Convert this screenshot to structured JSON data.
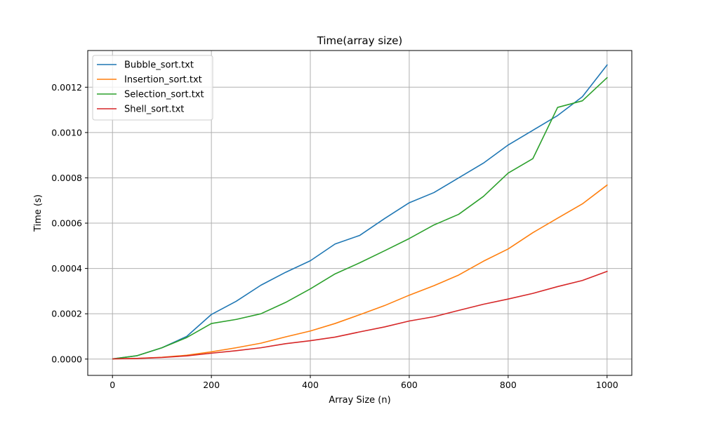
{
  "chart_data": {
    "type": "line",
    "title": "Time(array size)",
    "xlabel": "Array Size (n)",
    "ylabel": "Time (s)",
    "xlim": [
      -50,
      1050
    ],
    "ylim": [
      -7.2e-05,
      0.001362
    ],
    "grid": true,
    "legend_position": "upper-left",
    "x_ticks": [
      0,
      200,
      400,
      600,
      800,
      1000
    ],
    "x_tick_labels": [
      "0",
      "200",
      "400",
      "600",
      "800",
      "1000"
    ],
    "y_ticks": [
      0,
      0.0002,
      0.0004,
      0.0006,
      0.0008,
      0.001,
      0.0012
    ],
    "y_tick_labels": [
      "0.0000",
      "0.0002",
      "0.0004",
      "0.0006",
      "0.0008",
      "0.0010",
      "0.0012"
    ],
    "x": [
      1,
      50,
      100,
      150,
      200,
      250,
      300,
      350,
      400,
      450,
      500,
      550,
      600,
      650,
      700,
      750,
      800,
      850,
      900,
      950,
      1000
    ],
    "series": [
      {
        "name": "Bubble_sort.txt",
        "color": "#1f77b4",
        "values": [
          1e-06,
          1.5e-05,
          5e-05,
          0.0001,
          0.000197,
          0.000255,
          0.000326,
          0.000383,
          0.000434,
          0.000508,
          0.000546,
          0.00062,
          0.00069,
          0.000735,
          0.0008,
          0.000865,
          0.000945,
          0.00101,
          0.001075,
          0.001158,
          0.001298
        ]
      },
      {
        "name": "Insertion_sort.txt",
        "color": "#ff7f0e",
        "values": [
          1e-06,
          3e-06,
          8e-06,
          1.7e-05,
          3.2e-05,
          5e-05,
          7e-05,
          9.8e-05,
          0.000124,
          0.000157,
          0.000196,
          0.000236,
          0.000282,
          0.000324,
          0.000371,
          0.000432,
          0.000486,
          0.000558,
          0.000622,
          0.000685,
          0.000768
        ]
      },
      {
        "name": "Selection_sort.txt",
        "color": "#2ca02c",
        "values": [
          1e-06,
          1.5e-05,
          5e-05,
          9.5e-05,
          0.000157,
          0.000175,
          0.0002,
          0.00025,
          0.00031,
          0.000376,
          0.000425,
          0.000478,
          0.000532,
          0.000592,
          0.000639,
          0.000718,
          0.000821,
          0.000885,
          0.001111,
          0.00114,
          0.001242
        ]
      },
      {
        "name": "Shell_sort.txt",
        "color": "#d62728",
        "values": [
          1e-06,
          3e-06,
          7e-06,
          1.4e-05,
          2.6e-05,
          3.7e-05,
          5e-05,
          6.8e-05,
          8.1e-05,
          9.7e-05,
          0.00012,
          0.000142,
          0.000168,
          0.000187,
          0.000215,
          0.000242,
          0.000265,
          0.00029,
          0.00032,
          0.000347,
          0.000387
        ]
      }
    ]
  }
}
